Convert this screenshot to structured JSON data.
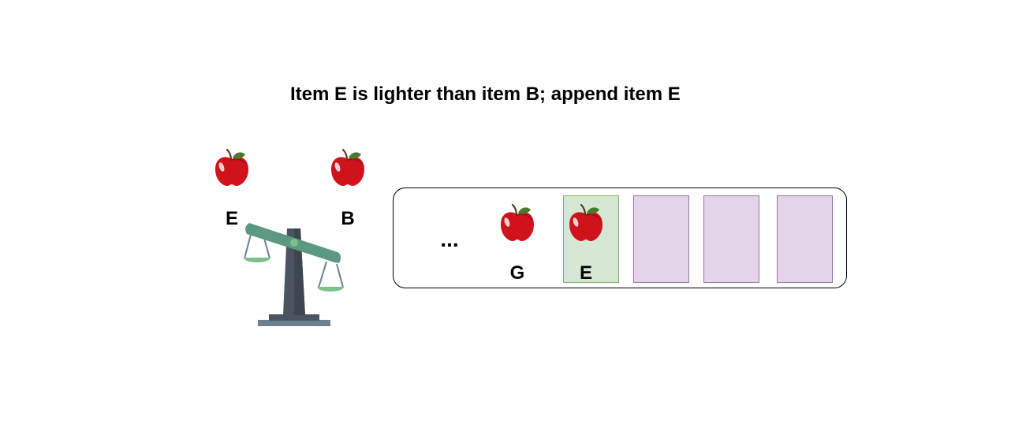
{
  "caption": "Item E is lighter than item B; append item E",
  "scale": {
    "left_item": "E",
    "right_item": "B",
    "tilt": "left side up"
  },
  "list": {
    "ellipsis": "...",
    "items": [
      {
        "label": "G",
        "state": "existing"
      },
      {
        "label": "E",
        "state": "appended"
      }
    ],
    "empty_slots": 3
  },
  "colors": {
    "appended_fill": "#d5e8d4",
    "appended_border": "#82b366",
    "empty_fill": "#e1d5e7",
    "empty_border": "#9673a6",
    "scale_beam": "#5b9a80",
    "scale_post": "#4a5561",
    "apple_red": "#d0121b",
    "apple_leaf": "#4c7a2a"
  },
  "icons": {
    "item_icon": "apple-icon",
    "balance_icon": "balance-scale-icon"
  }
}
